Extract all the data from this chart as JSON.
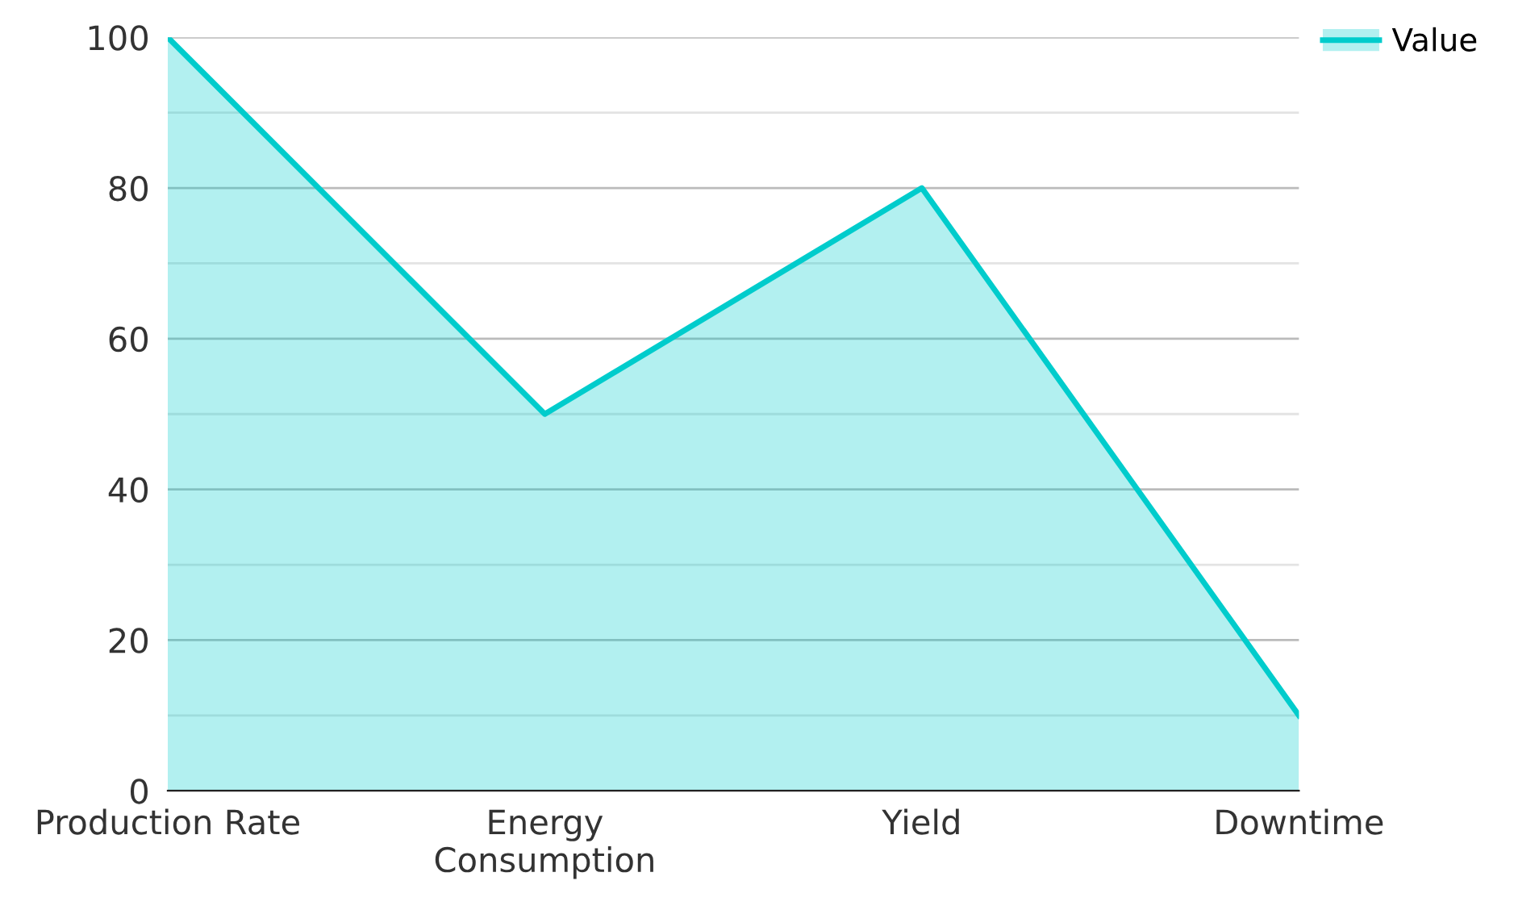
{
  "chart_data": {
    "type": "area",
    "categories": [
      "Production Rate",
      "Energy\nConsumption",
      "Yield",
      "Downtime"
    ],
    "series": [
      {
        "name": "Value",
        "color": "#00cccc",
        "values": [
          100,
          50,
          80,
          10
        ]
      }
    ],
    "ylim": [
      0,
      100
    ],
    "yticks": [
      0,
      {
        "value": 10,
        "label": null
      },
      20,
      {
        "value": 30,
        "label": null
      },
      40,
      {
        "value": 50,
        "label": null
      },
      60,
      {
        "value": 70,
        "label": null
      },
      80,
      {
        "value": 90,
        "label": null
      },
      100
    ],
    "grid": "y",
    "legend": "top right"
  }
}
